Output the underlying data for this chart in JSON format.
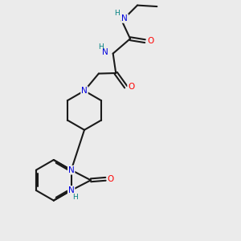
{
  "bg_color": "#ebebeb",
  "N_color": "#0000dd",
  "O_color": "#ff0000",
  "H_color": "#008080",
  "bond_color": "#1a1a1a",
  "bond_lw": 1.5,
  "figsize": [
    3.0,
    3.0
  ],
  "dpi": 100,
  "xlim": [
    0,
    10
  ],
  "ylim": [
    0,
    10
  ]
}
